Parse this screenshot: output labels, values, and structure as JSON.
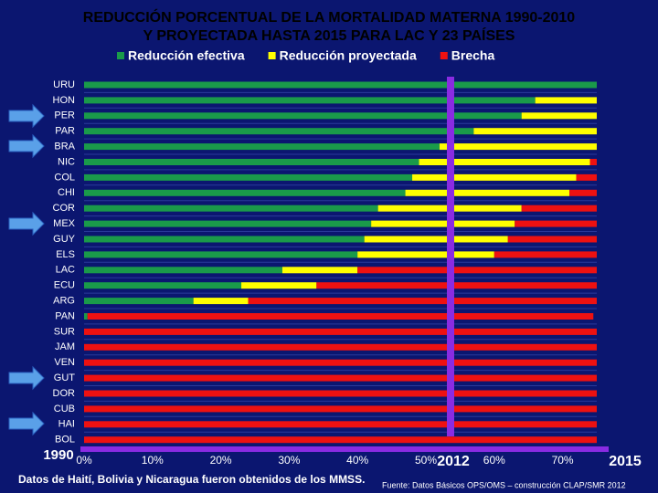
{
  "chart_data": {
    "type": "stacked-barh",
    "title": "REDUCCIÓN PORCENTUAL DE LA MORTALIDAD MATERNA 1990-2010",
    "subtitle": "Y PROYECTADA HASTA 2015 PARA LAC Y 23 PAÍSES",
    "categories": [
      "URU",
      "HON",
      "PER",
      "PAR",
      "BRA",
      "NIC",
      "COL",
      "CHI",
      "COR",
      "MEX",
      "GUY",
      "ELS",
      "LAC",
      "ECU",
      "ARG",
      "PAN",
      "SUR",
      "JAM",
      "VEN",
      "GUT",
      "DOR",
      "CUB",
      "HAI",
      "BOL"
    ],
    "series": [
      {
        "name": "Reducción efectiva",
        "color": "#1a9a4a",
        "values": [
          75,
          66,
          64,
          57,
          52,
          49,
          48,
          47,
          43,
          42,
          41,
          40,
          29,
          23,
          16,
          0.5,
          0,
          0,
          0,
          0,
          0,
          0,
          0,
          0
        ]
      },
      {
        "name": "Reducción proyectada",
        "color": "#ffff00",
        "values": [
          0,
          9,
          11,
          18,
          23,
          25,
          24,
          24,
          21,
          21,
          21,
          20,
          11,
          11,
          8,
          0,
          0,
          0,
          0,
          0,
          0,
          0,
          0,
          0
        ]
      },
      {
        "name": "Brecha",
        "color": "#ee1111",
        "values": [
          0,
          0,
          0,
          0,
          0,
          1,
          3,
          4,
          11,
          12,
          13,
          15,
          35,
          41,
          51,
          74,
          75,
          75,
          75,
          75,
          75,
          75,
          75,
          75
        ]
      }
    ],
    "xlim": [
      0,
      75
    ],
    "xticks": [
      {
        "value": 0,
        "label": "0%"
      },
      {
        "value": 10,
        "label": "10%"
      },
      {
        "value": 20,
        "label": "20%"
      },
      {
        "value": 30,
        "label": "30%"
      },
      {
        "value": 40,
        "label": "40%"
      },
      {
        "value": 50,
        "label": "50%"
      },
      {
        "value": 60,
        "label": "60%"
      },
      {
        "value": 70,
        "label": "70%"
      }
    ],
    "annotations": [
      "1990",
      "2012",
      "2015"
    ],
    "notes": [
      "Datos de Haití,  Bolivia y Nicaragua fueron obtenidos de los MMSS.",
      "Fuente: Datos Básicos OPS/OMS – construcción CLAP/SMR 2012"
    ]
  }
}
